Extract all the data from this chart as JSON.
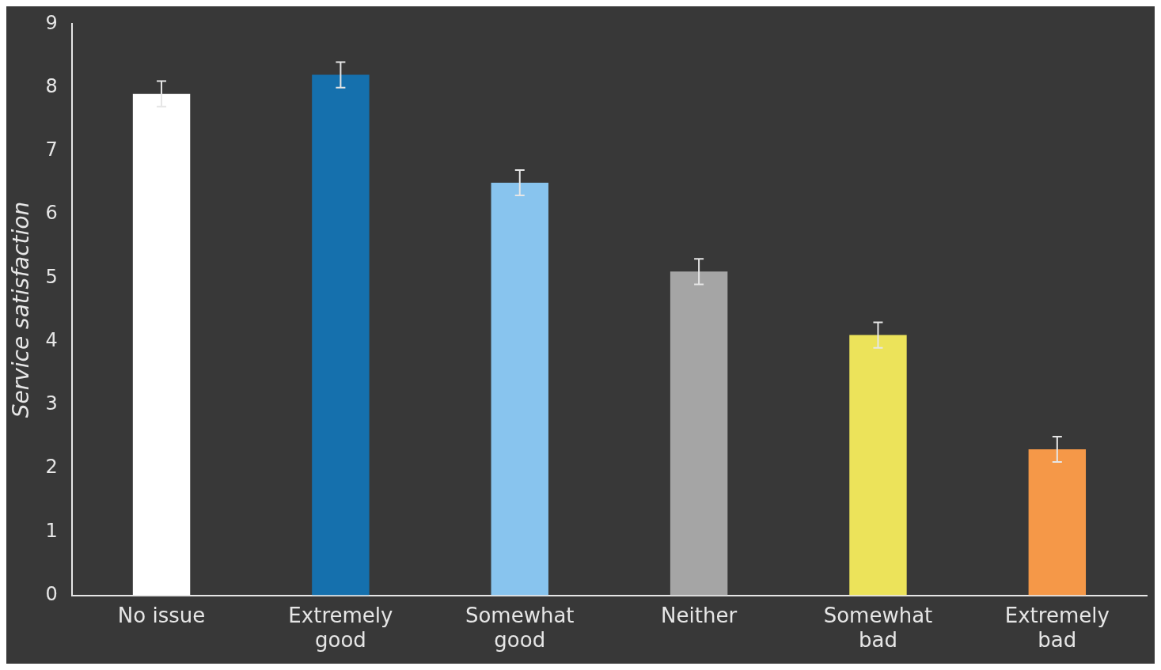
{
  "chart_data": {
    "type": "bar",
    "ylabel": "Service satisfaction",
    "categories": [
      "No issue",
      "Extremely good",
      "Somewhat good",
      "Neither",
      "Somewhat bad",
      "Extremely bad"
    ],
    "values": [
      7.9,
      8.2,
      6.5,
      5.1,
      4.1,
      2.3
    ],
    "colors": [
      "#ffffff",
      "#1570ad",
      "#88c4ee",
      "#a5a5a5",
      "#ece35a",
      "#f59848"
    ],
    "errors": [
      0.2,
      0.2,
      0.2,
      0.2,
      0.2,
      0.2
    ],
    "ylim": [
      0,
      9
    ],
    "yticks": [
      0,
      1,
      2,
      3,
      4,
      5,
      6,
      7,
      8,
      9
    ],
    "grid": false,
    "legend": false
  }
}
